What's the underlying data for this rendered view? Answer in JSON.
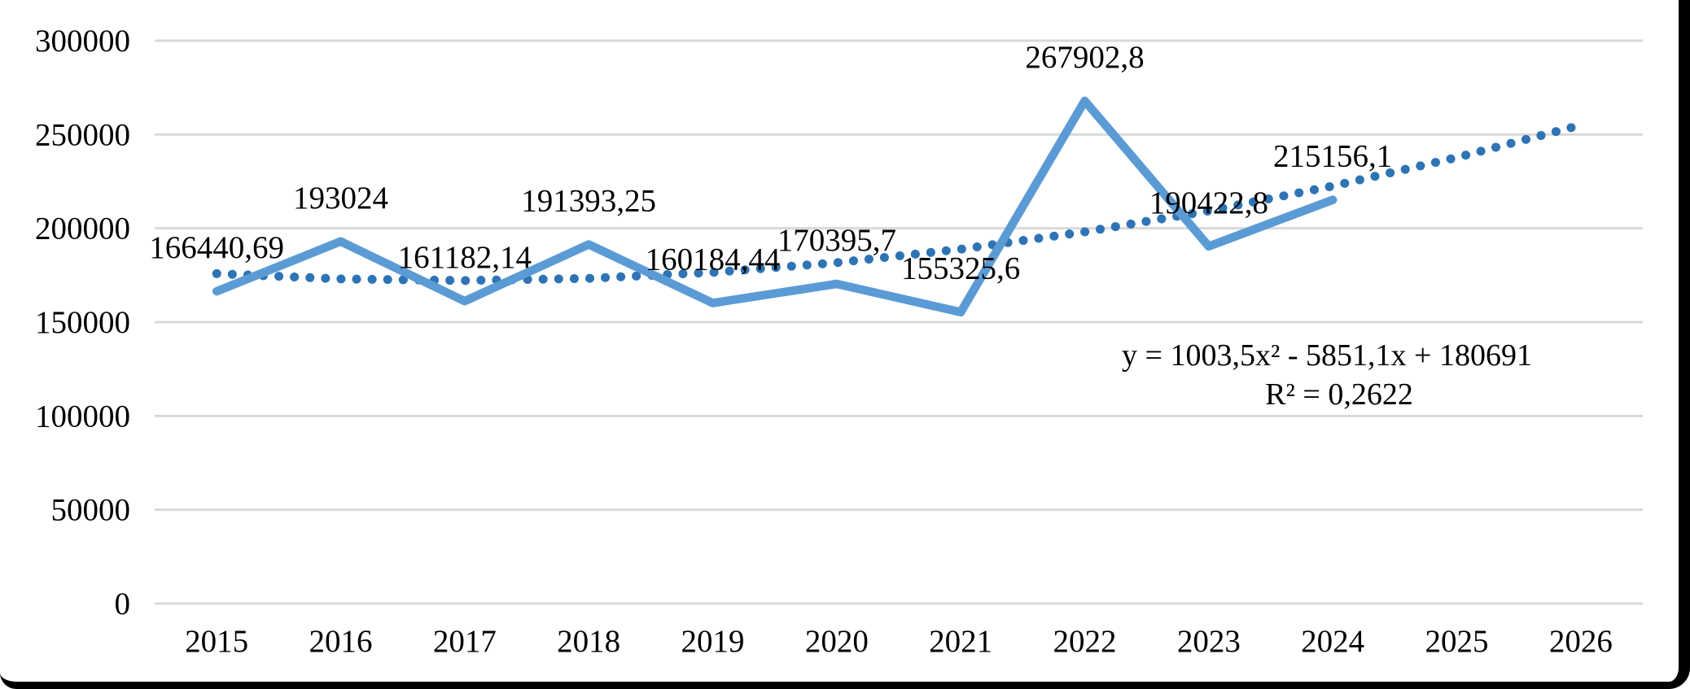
{
  "chart_data": {
    "type": "line",
    "title": "",
    "xlabel": "",
    "ylabel": "",
    "grid": true,
    "legend": "none",
    "categories": [
      "2015",
      "2016",
      "2017",
      "2018",
      "2019",
      "2020",
      "2021",
      "2022",
      "2023",
      "2024",
      "2025",
      "2026"
    ],
    "series": [
      {
        "name": "main-series",
        "color": "#5B9BD5",
        "values": [
          166440.69,
          193024,
          161182.14,
          191393.25,
          160184.44,
          170395.7,
          155325.6,
          267902.8,
          190422.8,
          215156.1
        ],
        "labels": [
          "166440,69",
          "193024",
          "161182,14",
          "191393,25",
          "160184,44",
          "170395,7",
          "155325,6",
          "267902,8",
          "190422,8",
          "215156,1"
        ]
      }
    ],
    "trendline": {
      "type": "polynomial-order-2",
      "style": "dotted",
      "color": "#2E74B5",
      "coefficients": {
        "a": 1003.5,
        "b": -5851.1,
        "c": 180691
      },
      "equation": "y = 1003,5x² - 5851,1x + 180691",
      "r_squared": "R² = 0,2622",
      "forecast_through": "2026"
    },
    "y_axis": {
      "min": 0,
      "max": 300000,
      "ticks": [
        "300000",
        "250000",
        "200000",
        "150000",
        "100000",
        "50000",
        "0"
      ]
    },
    "x_axis": {
      "ticks": [
        "2015",
        "2016",
        "2017",
        "2018",
        "2019",
        "2020",
        "2021",
        "2022",
        "2023",
        "2024",
        "2025",
        "2026"
      ]
    },
    "colors": {
      "gridline": "#D9D9D9",
      "text": "#000000",
      "frame": "#000000"
    }
  }
}
